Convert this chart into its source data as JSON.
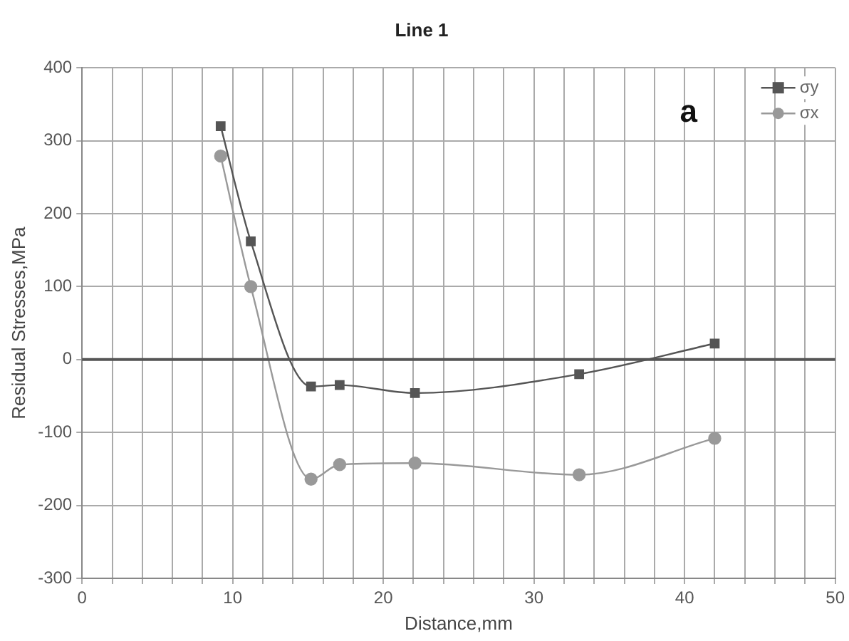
{
  "chart_data": {
    "type": "line",
    "title": "Line 1",
    "xlabel": "Distance,mm",
    "ylabel": "Residual Stresses,MPa",
    "xlim": [
      0,
      50
    ],
    "xticks": [
      0,
      {
        "value": 2,
        "label": null
      },
      {
        "value": 4,
        "label": null
      },
      {
        "value": 6,
        "label": null
      },
      {
        "value": 8,
        "label": null
      },
      10,
      {
        "value": 12,
        "label": null
      },
      {
        "value": 14,
        "label": null
      },
      {
        "value": 16,
        "label": null
      },
      {
        "value": 18,
        "label": null
      },
      20,
      {
        "value": 22,
        "label": null
      },
      {
        "value": 24,
        "label": null
      },
      {
        "value": 26,
        "label": null
      },
      {
        "value": 28,
        "label": null
      },
      30,
      {
        "value": 32,
        "label": null
      },
      {
        "value": 34,
        "label": null
      },
      {
        "value": 36,
        "label": null
      },
      {
        "value": 38,
        "label": null
      },
      40,
      {
        "value": 42,
        "label": null
      },
      {
        "value": 44,
        "label": null
      },
      {
        "value": 46,
        "label": null
      },
      {
        "value": 48,
        "label": null
      },
      50
    ],
    "ylim": [
      -300,
      400
    ],
    "yticks": [
      -300,
      -200,
      -100,
      0,
      100,
      200,
      300,
      400
    ],
    "grid": true,
    "legend": "top right",
    "line_style": "solid",
    "ref_lines": [
      {
        "axis": "y",
        "value": 0,
        "color": "#555555"
      }
    ],
    "annotations": [
      "a"
    ],
    "series": [
      {
        "name": "σy",
        "color": "#555555",
        "marker": "square",
        "x": [
          9.2,
          11.2,
          15.2,
          17.1,
          22.1,
          33,
          42
        ],
        "values": [
          320,
          162,
          -37,
          -35,
          -46,
          -20,
          22
        ]
      },
      {
        "name": "σx",
        "color": "#999999",
        "marker": "circle",
        "x": [
          9.2,
          11.2,
          15.2,
          17.1,
          22.1,
          33,
          42
        ],
        "values": [
          279,
          100,
          -164,
          -144,
          -142,
          -158,
          -108
        ]
      }
    ]
  }
}
